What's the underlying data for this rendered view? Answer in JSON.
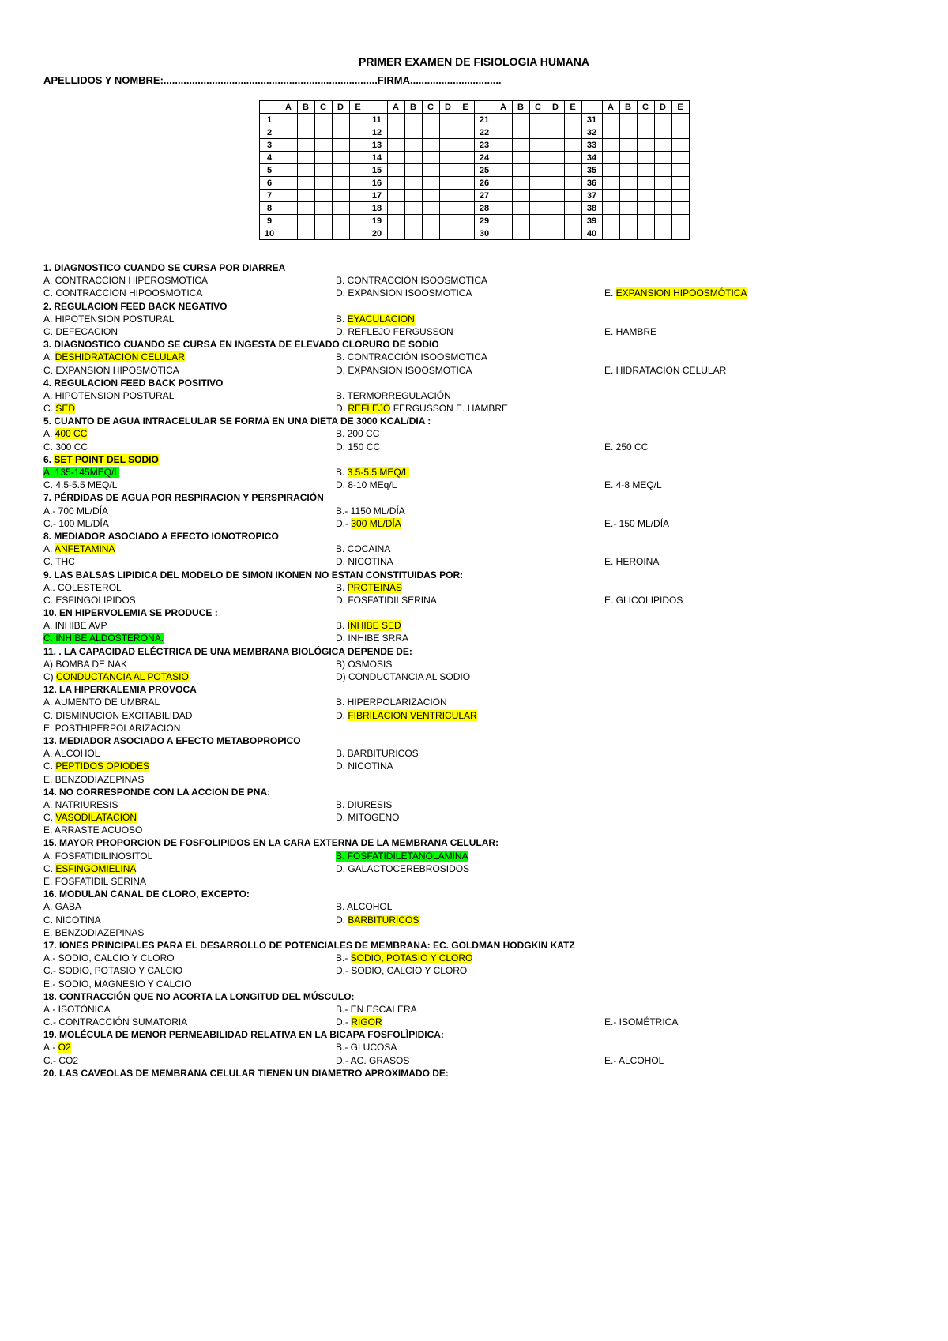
{
  "header": {
    "title": "PRIMER EXAMEN DE FISIOLOGIA HUMANA",
    "nameLine": "APELLIDOS Y NOMBRE:...........................................................................FIRMA................................"
  },
  "grid": {
    "cols": [
      "A",
      "B",
      "C",
      "D",
      "E"
    ],
    "groups": [
      [
        1,
        10
      ],
      [
        11,
        20
      ],
      [
        21,
        30
      ],
      [
        31,
        40
      ]
    ]
  },
  "questions": [
    {
      "n": "1.",
      "title": "DIAGNOSTICO CUANDO SE CURSA POR DIARREA",
      "opts": [
        [
          "A. CONTRACCION HIPEROSMOTICA",
          ""
        ],
        [
          "B. CONTRACCIÓN ISOOSMOTICA",
          ""
        ],
        [
          "",
          ""
        ],
        [
          "C. CONTRACCION HIPOOSMOTICA",
          ""
        ],
        [
          "D. EXPANSION ISOOSMOTICA",
          ""
        ],
        [
          "E. EXPANSION HIPOOSMÓTICA",
          "y"
        ]
      ]
    },
    {
      "n": "2.",
      "title": "REGULACION FEED BACK NEGATIVO",
      "opts": [
        [
          "A. HIPOTENSION POSTURAL",
          ""
        ],
        [
          "B. EYACULACION",
          "y"
        ],
        [
          "",
          ""
        ],
        [
          "C. DEFECACION",
          ""
        ],
        [
          "D. REFLEJO FERGUSSON",
          ""
        ],
        [
          "E. HAMBRE",
          ""
        ]
      ]
    },
    {
      "n": "3.",
      "title": "DIAGNOSTICO CUANDO SE CURSA EN INGESTA DE ELEVADO CLORURO DE SODIO",
      "opts": [
        [
          "A. DESHIDRATACION CELULAR",
          "y"
        ],
        [
          "B. CONTRACCIÓN ISOOSMOTICA",
          ""
        ],
        [
          "",
          ""
        ],
        [
          "C. EXPANSION HIPOSMOTICA",
          ""
        ],
        [
          "D. EXPANSION ISOOSMOTICA",
          ""
        ],
        [
          "E. HIDRATACION CELULAR",
          ""
        ]
      ]
    },
    {
      "n": "4.",
      "title": "REGULACION FEED BACK POSITIVO",
      "opts": [
        [
          "A. HIPOTENSION POSTURAL",
          ""
        ],
        [
          "B. TERMORREGULACIÓN",
          ""
        ],
        [
          "",
          ""
        ],
        [
          "C. SED",
          "y"
        ],
        [
          "D. REFLEJO FERGUSSON   E. HAMBRE",
          "yp"
        ],
        [
          "",
          ""
        ]
      ]
    },
    {
      "n": "5.",
      "title": "CUANTO DE AGUA INTRACELULAR SE FORMA EN UNA DIETA DE 3000 KCAL/DIA :",
      "opts": [
        [
          "A. 400 CC",
          "y"
        ],
        [
          "B. 200 CC",
          ""
        ],
        [
          "",
          ""
        ],
        [
          "C. 300 CC",
          ""
        ],
        [
          "D. 150 CC",
          ""
        ],
        [
          "E. 250 CC",
          ""
        ]
      ]
    },
    {
      "n": "6.",
      "title": "SET POINT DEL SODIO",
      "tHl": "y",
      "opts": [
        [
          "A. 135-145MEQ/L",
          "g"
        ],
        [
          "B. 3.5-5.5 MEQ/L",
          "y"
        ],
        [
          "",
          ""
        ],
        [
          "C. 4.5-5.5 MEQ/L",
          ""
        ],
        [
          "D. 8-10 MEq/L",
          ""
        ],
        [
          "E. 4-8 MEQ/L",
          ""
        ]
      ]
    },
    {
      "n": "7.",
      "title": "PÉRDIDAS DE AGUA POR RESPIRACION Y PERSPIRACIÓN",
      "opts": [
        [
          "A.- 700 ML/DÍA",
          ""
        ],
        [
          "B.- 1150 ML/DÍA",
          ""
        ],
        [
          "",
          ""
        ],
        [
          "C.- 100 ML/DÍA",
          ""
        ],
        [
          "D.- 300 ML/DÍA",
          "y"
        ],
        [
          "E.- 150 ML/DÍA",
          ""
        ]
      ]
    },
    {
      "n": "8.",
      "title": "MEDIADOR ASOCIADO A EFECTO IONOTROPICO",
      "opts": [
        [
          "A. ANFETAMINA",
          "y"
        ],
        [
          "B. COCAINA",
          ""
        ],
        [
          "",
          ""
        ],
        [
          "C. THC",
          ""
        ],
        [
          "D. NICOTINA",
          ""
        ],
        [
          "E. HEROINA",
          ""
        ]
      ]
    },
    {
      "n": "9.",
      "title": "LAS BALSAS LIPIDICA DEL MODELO DE SIMON IKONEN NO ESTAN CONSTITUIDAS POR:",
      "opts": [
        [
          "A.. COLESTEROL",
          ""
        ],
        [
          "B. PROTEINAS",
          "y"
        ],
        [
          "",
          ""
        ],
        [
          "C. ESFINGOLIPIDOS",
          ""
        ],
        [
          "D. FOSFATIDILSERINA",
          ""
        ],
        [
          "E. GLICOLIPIDOS",
          ""
        ]
      ]
    },
    {
      "n": "10.",
      "title": "EN HIPERVOLEMIA SE PRODUCE :",
      "opts": [
        [
          "A. INHIBE AVP",
          ""
        ],
        [
          "B. INHIBE SED",
          "y"
        ],
        [
          "",
          ""
        ],
        [
          "C. INHIBE ALDOSTERONA.",
          "g"
        ],
        [
          "D. INHIBE SRRA",
          ""
        ],
        [
          "",
          ""
        ]
      ]
    },
    {
      "n": "11.",
      "title": ". LA CAPACIDAD ELÉCTRICA DE UNA MEMBRANA BIOLÓGICA DEPENDE DE:",
      "opts": [
        [
          "A) BOMBA DE NAK",
          ""
        ],
        [
          "B) OSMOSIS",
          ""
        ],
        [
          "",
          ""
        ],
        [
          "C) CONDUCTANCIA AL POTASIO",
          "y"
        ],
        [
          "D) CONDUCTANCIA AL SODIO",
          ""
        ],
        [
          "",
          ""
        ]
      ]
    },
    {
      "n": "12.",
      "title": "LA HIPERKALEMIA PROVOCA",
      "opts": [
        [
          "A. AUMENTO DE UMBRAL",
          ""
        ],
        [
          "B. HIPERPOLARIZACION",
          ""
        ],
        [
          "",
          ""
        ],
        [
          "C. DISMINUCION EXCITABILIDAD",
          ""
        ],
        [
          "D. FIBRILACION VENTRICULAR",
          "y"
        ],
        [
          "",
          ""
        ],
        [
          "E. POSTHIPERPOLARIZACION",
          ""
        ],
        [
          "",
          ""
        ],
        [
          "",
          ""
        ]
      ]
    },
    {
      "n": "13.",
      "title": "MEDIADOR ASOCIADO A EFECTO METABOPROPICO",
      "opts": [
        [
          "A. ALCOHOL",
          ""
        ],
        [
          "B. BARBITURICOS",
          ""
        ],
        [
          "",
          ""
        ],
        [
          "C. PEPTIDOS OPIODES",
          "y"
        ],
        [
          "D. NICOTINA",
          ""
        ],
        [
          "",
          ""
        ],
        [
          "E, BENZODIAZEPINAS",
          ""
        ],
        [
          "",
          ""
        ],
        [
          "",
          ""
        ]
      ]
    },
    {
      "n": "14.",
      "title": "NO CORRESPONDE CON LA ACCION DE PNA:",
      "opts": [
        [
          "A. NATRIURESIS",
          ""
        ],
        [
          "B. DIURESIS",
          ""
        ],
        [
          "",
          ""
        ],
        [
          "C. VASODILATACION",
          "y"
        ],
        [
          "D. MITOGENO",
          ""
        ],
        [
          "",
          ""
        ],
        [
          "E. ARRASTE ACUOSO",
          ""
        ],
        [
          "",
          ""
        ],
        [
          "",
          ""
        ]
      ]
    },
    {
      "n": "15.",
      "title": "MAYOR PROPORCION DE FOSFOLIPIDOS EN LA CARA EXTERNA DE LA MEMBRANA CELULAR:",
      "opts": [
        [
          "A. FOSFATIDILINOSITOL",
          ""
        ],
        [
          "B. FOSFATIDILETANOLAMINA",
          "g"
        ],
        [
          "",
          ""
        ],
        [
          "C. ESFINGOMIELINA",
          "y"
        ],
        [
          "D. GALACTOCEREBROSIDOS",
          ""
        ],
        [
          "",
          ""
        ],
        [
          "E. FOSFATIDIL SERINA",
          ""
        ],
        [
          "",
          ""
        ],
        [
          "",
          ""
        ]
      ]
    },
    {
      "n": "16.",
      "title": "MODULAN CANAL DE CLORO, EXCEPTO:",
      "opts": [
        [
          "A. GABA",
          ""
        ],
        [
          "B. ALCOHOL",
          ""
        ],
        [
          "",
          ""
        ],
        [
          "C. NICOTINA",
          ""
        ],
        [
          "D. BARBITURICOS",
          "y"
        ],
        [
          "",
          ""
        ],
        [
          "E. BENZODIAZEPINAS",
          ""
        ],
        [
          "",
          ""
        ],
        [
          "",
          ""
        ]
      ]
    },
    {
      "n": "17.",
      "title": "IONES PRINCIPALES PARA EL DESARROLLO DE POTENCIALES DE MEMBRANA: EC. GOLDMAN HODGKIN KATZ",
      "opts": [
        [
          "A.- SODIO, CALCIO Y CLORO",
          ""
        ],
        [
          "B.- SODIO, POTASIO Y CLORO",
          "y"
        ],
        [
          "",
          ""
        ],
        [
          "C.- SODIO, POTASIO Y CALCIO",
          ""
        ],
        [
          "D.- SODIO, CALCIO Y CLORO",
          ""
        ],
        [
          "",
          ""
        ],
        [
          "E.- SODIO, MAGNESIO Y CALCIO",
          ""
        ],
        [
          "",
          ""
        ],
        [
          "",
          ""
        ]
      ]
    },
    {
      "n": "18.",
      "title": "CONTRACCIÓN QUE NO ACORTA LA LONGITUD DEL MÚSCULO:",
      "opts": [
        [
          "A.- ISOTÓNICA",
          ""
        ],
        [
          "B.- EN ESCALERA",
          ""
        ],
        [
          "",
          ""
        ],
        [
          "C.- CONTRACCIÓN SUMATORIA",
          ""
        ],
        [
          "D.- RIGOR",
          "y"
        ],
        [
          "E.- ISOMÉTRICA",
          ""
        ]
      ]
    },
    {
      "n": "19.",
      "title": "MOLÉCULA DE MENOR PERMEABILIDAD RELATIVA EN LA BICAPA FOSFOLÌPIDICA:",
      "opts": [
        [
          "A.- O2",
          "y"
        ],
        [
          "B.- GLUCOSA",
          ""
        ],
        [
          "",
          ""
        ],
        [
          "C.- CO2",
          ""
        ],
        [
          "D.- AC. GRASOS",
          ""
        ],
        [
          "E.- ALCOHOL",
          ""
        ]
      ]
    },
    {
      "n": "20.",
      "title": "LAS CAVEOLAS DE MEMBRANA CELULAR TIENEN UN DIAMETRO APROXIMADO DE:",
      "opts": []
    }
  ]
}
